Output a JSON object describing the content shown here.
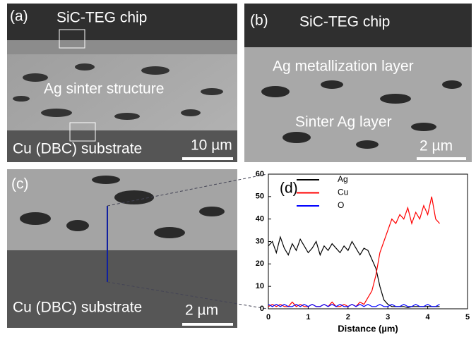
{
  "panels": {
    "a": {
      "label": "(a)",
      "top": "SiC-TEG chip",
      "middle": "Ag sinter structure",
      "bottom": "Cu (DBC) substrate",
      "scale": "10 µm"
    },
    "b": {
      "label": "(b)",
      "top": "SiC-TEG chip",
      "middle": "Ag metallization layer",
      "bottom": "Sinter Ag layer",
      "scale": "2 µm"
    },
    "c": {
      "label": "(c)",
      "bottom": "Cu (DBC) substrate",
      "scale": "2 µm"
    }
  },
  "chart_data": {
    "type": "line",
    "label": "(d)",
    "x_label": "Distance (µm)",
    "x": [
      0,
      0.1,
      0.2,
      0.3,
      0.4,
      0.5,
      0.6,
      0.7,
      0.8,
      0.9,
      1,
      1.1,
      1.2,
      1.3,
      1.4,
      1.5,
      1.6,
      1.7,
      1.8,
      1.9,
      2,
      2.1,
      2.2,
      2.3,
      2.4,
      2.5,
      2.6,
      2.7,
      2.8,
      2.9,
      3,
      3.1,
      3.2,
      3.3,
      3.4,
      3.5,
      3.6,
      3.7,
      3.8,
      3.9,
      4,
      4.1,
      4.2,
      4.3
    ],
    "series": [
      {
        "name": "Ag",
        "color": "#000000",
        "values": [
          28,
          30,
          25,
          32,
          27,
          24,
          29,
          26,
          31,
          28,
          25,
          27,
          30,
          24,
          28,
          26,
          29,
          27,
          25,
          28,
          26,
          30,
          27,
          24,
          27,
          26,
          22,
          18,
          10,
          4,
          2,
          1,
          1,
          1,
          1,
          0.5,
          1,
          1,
          1,
          1,
          1,
          1,
          1,
          1
        ]
      },
      {
        "name": "Cu",
        "color": "#ff0000",
        "values": [
          1,
          2,
          1,
          2,
          1,
          1,
          3,
          1,
          2,
          1,
          1,
          2,
          1,
          1,
          2,
          1,
          3,
          1,
          1,
          2,
          1,
          2,
          1,
          3,
          2,
          5,
          8,
          15,
          25,
          30,
          35,
          40,
          38,
          42,
          40,
          45,
          38,
          43,
          40,
          46,
          42,
          50,
          40,
          38
        ]
      },
      {
        "name": "O",
        "color": "#0000ff",
        "values": [
          2,
          1,
          2,
          1,
          2,
          1,
          1,
          2,
          1,
          2,
          1,
          2,
          1,
          1,
          2,
          1,
          2,
          1,
          2,
          1,
          1,
          2,
          1,
          2,
          1,
          2,
          1,
          1,
          2,
          1,
          1,
          2,
          1,
          1,
          2,
          1,
          1,
          2,
          1,
          1,
          2,
          1,
          1,
          2
        ]
      }
    ],
    "xlim": [
      0,
      5
    ],
    "xticks": [
      0,
      1,
      2,
      3,
      4,
      5
    ],
    "ylim": [
      0,
      60
    ],
    "yticks": [
      0,
      10,
      20,
      30,
      40,
      50,
      60
    ]
  }
}
